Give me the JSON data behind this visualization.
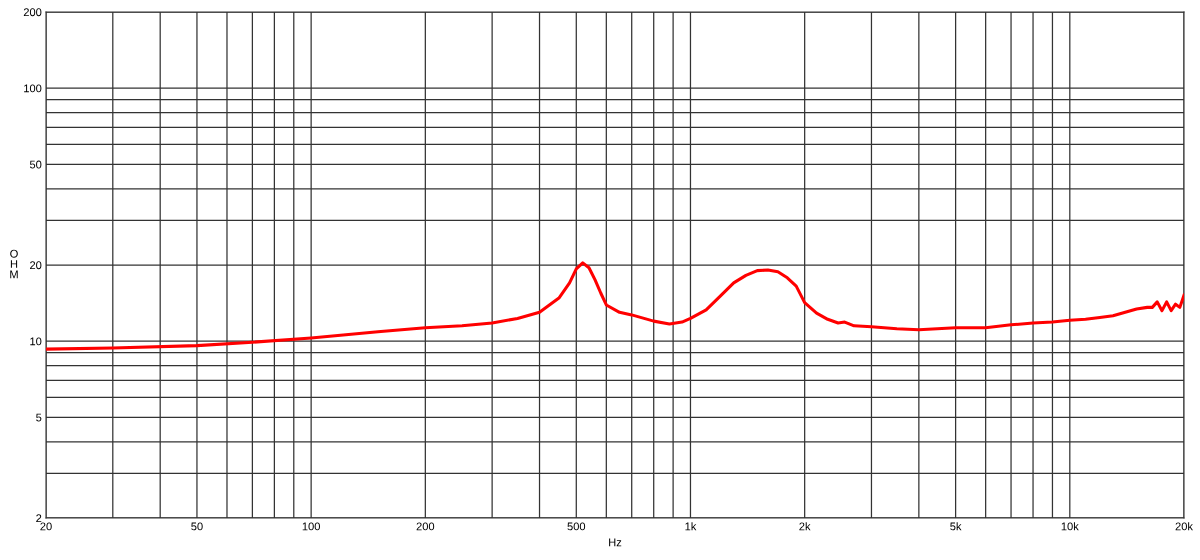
{
  "chart_data": {
    "type": "line",
    "xlabel": "Hz",
    "ylabel": "OHM",
    "log": "xy",
    "grid": true,
    "marker": "none",
    "line_style": "solid",
    "xlim": [
      20,
      20000
    ],
    "ylim": [
      2,
      200
    ],
    "xticks": [
      20,
      {
        "value": 30,
        "label": null
      },
      {
        "value": 40,
        "label": null
      },
      50,
      {
        "value": 60,
        "label": null
      },
      {
        "value": 70,
        "label": null
      },
      {
        "value": 80,
        "label": null
      },
      {
        "value": 90,
        "label": null
      },
      100,
      200,
      {
        "value": 300,
        "label": null
      },
      {
        "value": 400,
        "label": null
      },
      500,
      {
        "value": 600,
        "label": null
      },
      {
        "value": 700,
        "label": null
      },
      {
        "value": 800,
        "label": null
      },
      {
        "value": 900,
        "label": null
      },
      {
        "value": 1000,
        "label": "1k"
      },
      {
        "value": 2000,
        "label": "2k"
      },
      {
        "value": 3000,
        "label": null
      },
      {
        "value": 4000,
        "label": null
      },
      {
        "value": 5000,
        "label": "5k"
      },
      {
        "value": 6000,
        "label": null
      },
      {
        "value": 7000,
        "label": null
      },
      {
        "value": 8000,
        "label": null
      },
      {
        "value": 9000,
        "label": null
      },
      {
        "value": 10000,
        "label": "10k"
      },
      {
        "value": 20000,
        "label": "20k"
      }
    ],
    "yticks": [
      2,
      {
        "value": 3,
        "label": null
      },
      {
        "value": 4,
        "label": null
      },
      5,
      {
        "value": 6,
        "label": null
      },
      {
        "value": 7,
        "label": null
      },
      {
        "value": 8,
        "label": null
      },
      {
        "value": 9,
        "label": null
      },
      10,
      20,
      {
        "value": 30,
        "label": null
      },
      {
        "value": 40,
        "label": null
      },
      50,
      {
        "value": 60,
        "label": null
      },
      {
        "value": 70,
        "label": null
      },
      {
        "value": 80,
        "label": null
      },
      {
        "value": 90,
        "label": null
      },
      100,
      200
    ],
    "series": [
      {
        "color": "#ff0000",
        "x": [
          20,
          30,
          50,
          70,
          100,
          150,
          200,
          250,
          300,
          350,
          400,
          450,
          480,
          500,
          520,
          540,
          560,
          580,
          600,
          650,
          700,
          800,
          880,
          950,
          1000,
          1100,
          1200,
          1300,
          1400,
          1500,
          1600,
          1700,
          1800,
          1900,
          2000,
          2150,
          2300,
          2450,
          2550,
          2700,
          3000,
          3500,
          4000,
          5000,
          6000,
          7000,
          8000,
          9000,
          10000,
          11000,
          12000,
          13000,
          14000,
          15000,
          16000,
          16500,
          17000,
          17500,
          18000,
          18500,
          19000,
          19500,
          20000
        ],
        "values": [
          9.3,
          9.4,
          9.6,
          9.9,
          10.3,
          10.9,
          11.3,
          11.5,
          11.8,
          12.3,
          13.0,
          14.8,
          17.0,
          19.3,
          20.4,
          19.5,
          17.5,
          15.5,
          13.9,
          13.0,
          12.7,
          12.0,
          11.7,
          11.9,
          12.3,
          13.3,
          15.1,
          17.0,
          18.2,
          19.0,
          19.1,
          18.8,
          17.8,
          16.5,
          14.2,
          12.9,
          12.2,
          11.8,
          11.9,
          11.5,
          11.4,
          11.2,
          11.1,
          11.3,
          11.3,
          11.6,
          11.8,
          11.9,
          12.1,
          12.2,
          12.4,
          12.6,
          13.0,
          13.4,
          13.6,
          13.6,
          14.3,
          13.2,
          14.3,
          13.2,
          14.0,
          13.6,
          15.2
        ]
      }
    ]
  }
}
